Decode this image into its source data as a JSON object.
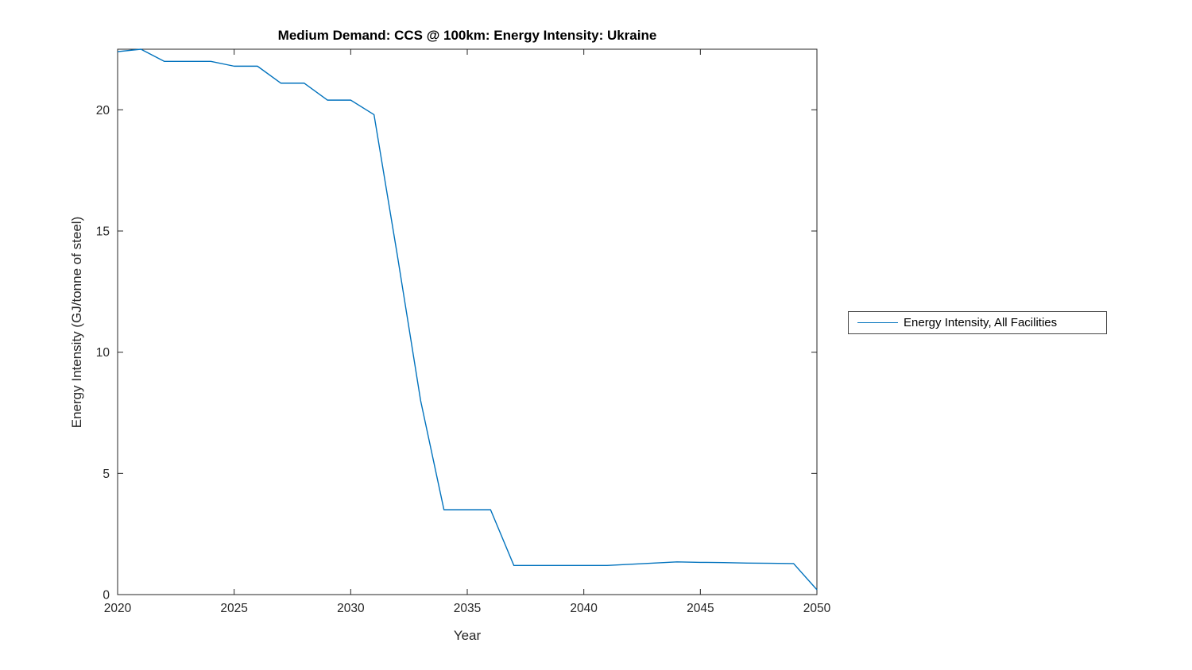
{
  "window": {
    "background": "#ffffff"
  },
  "colors": {
    "line": "#0072BD",
    "axis": "#262626",
    "tick_text": "#262626",
    "title_text": "#000000",
    "legend_border": "#464646",
    "background": "#ffffff"
  },
  "chart_data": {
    "type": "line",
    "title": "Medium Demand: CCS @ 100km: Energy Intensity: Ukraine",
    "xlabel": "Year",
    "ylabel": "Energy Intensity (GJ/tonne of steel)",
    "xlim": [
      2020,
      2050
    ],
    "ylim": [
      0,
      22.5
    ],
    "xticks": [
      2020,
      2025,
      2030,
      2035,
      2040,
      2045,
      2050
    ],
    "yticks": [
      0,
      5,
      10,
      15,
      20
    ],
    "grid": false,
    "box": true,
    "tick_direction": "in",
    "legend": {
      "position": "outside-right",
      "entries": [
        "Energy Intensity, All Facilities"
      ]
    },
    "series": [
      {
        "name": "Energy Intensity, All Facilities",
        "color": "#0072BD",
        "x": [
          2020,
          2021,
          2022,
          2023,
          2024,
          2025,
          2026,
          2027,
          2028,
          2029,
          2030,
          2031,
          2032,
          2033,
          2034,
          2035,
          2036,
          2037,
          2038,
          2039,
          2040,
          2041,
          2042,
          2043,
          2044,
          2045,
          2046,
          2047,
          2048,
          2049,
          2050
        ],
        "values": [
          22.4,
          22.5,
          22.0,
          22.0,
          22.0,
          21.8,
          21.8,
          21.1,
          21.1,
          20.4,
          20.4,
          19.8,
          14.0,
          8.0,
          3.5,
          3.5,
          3.5,
          1.2,
          1.2,
          1.2,
          1.2,
          1.2,
          1.25,
          1.3,
          1.35,
          1.33,
          1.32,
          1.3,
          1.29,
          1.28,
          0.2
        ]
      }
    ]
  }
}
